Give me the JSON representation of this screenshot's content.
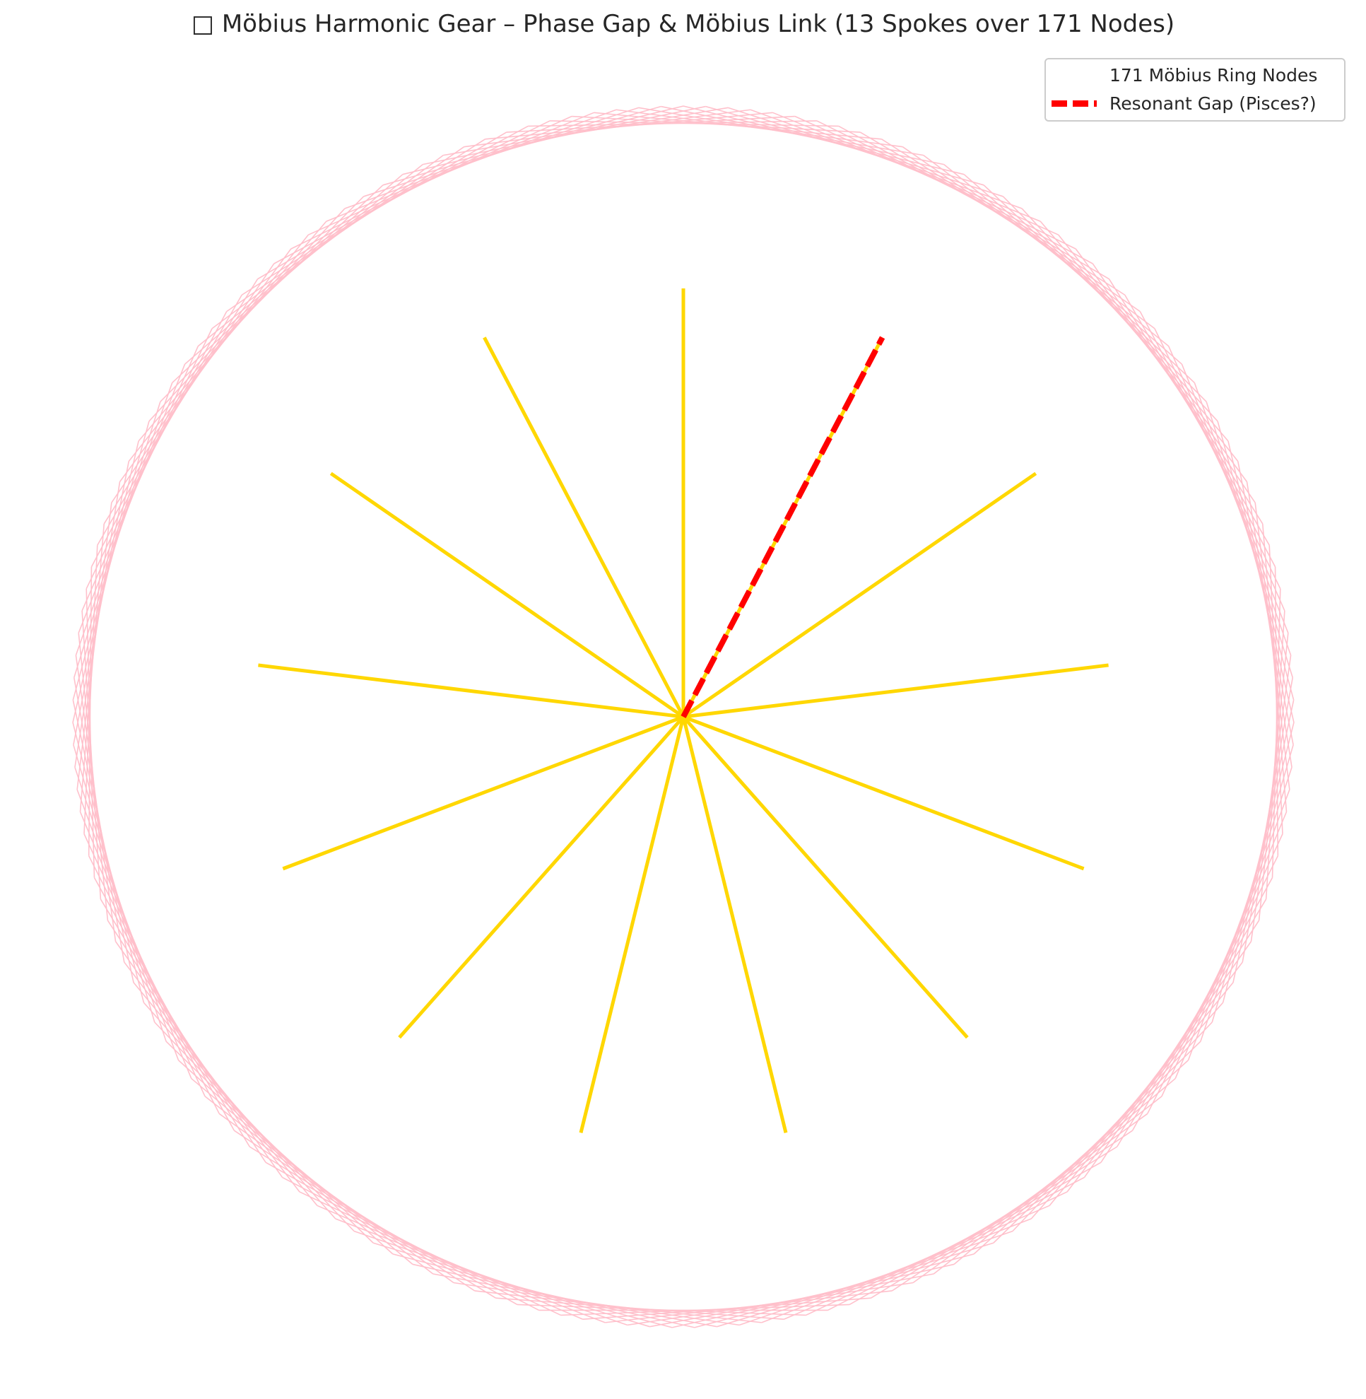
{
  "title": "□ Möbius Harmonic Gear – Phase Gap & Möbius Link (13 Spokes over 171 Nodes)",
  "diagram": {
    "ring_nodes": 171,
    "spokes": 13,
    "chord_step": 13,
    "gap_spoke_index": 1,
    "colors": {
      "chords": "#ffc0cb",
      "spokes": "#ffd700",
      "gap": "#ff0000",
      "background": "#ffffff"
    }
  },
  "legend": {
    "placement": "top-right",
    "items": [
      {
        "label": "171 Möbius Ring Nodes",
        "style": "none"
      },
      {
        "label": "Resonant Gap (Pisces?)",
        "style": "red-dashed"
      }
    ]
  }
}
